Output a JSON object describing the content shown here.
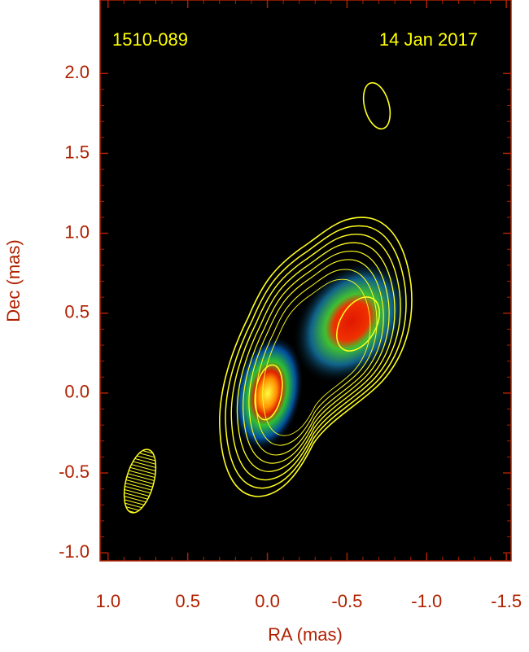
{
  "chart_data": {
    "type": "image",
    "annotations": [
      "1510-089",
      "14 Jan 2017"
    ],
    "xlabel": "RA (mas)",
    "ylabel": "Dec (mas)",
    "xlim": [
      1.05,
      -1.53
    ],
    "ylim": [
      -1.05,
      2.46
    ],
    "xticks": [
      {
        "value": 1.0,
        "label": "1.0"
      },
      0.5,
      {
        "value": 0.0,
        "label": "0.0"
      },
      -0.5,
      {
        "value": -1.0,
        "label": "-1.0"
      },
      -1.5
    ],
    "yticks": [
      {
        "value": -1.0,
        "label": "-1.0"
      },
      -0.5,
      {
        "value": 0.0,
        "label": "0.0"
      },
      0.5,
      {
        "value": 1.0,
        "label": "1.0"
      },
      1.5,
      {
        "value": 2.0,
        "label": "2.0"
      }
    ],
    "axis_color": "#b02000"
  }
}
